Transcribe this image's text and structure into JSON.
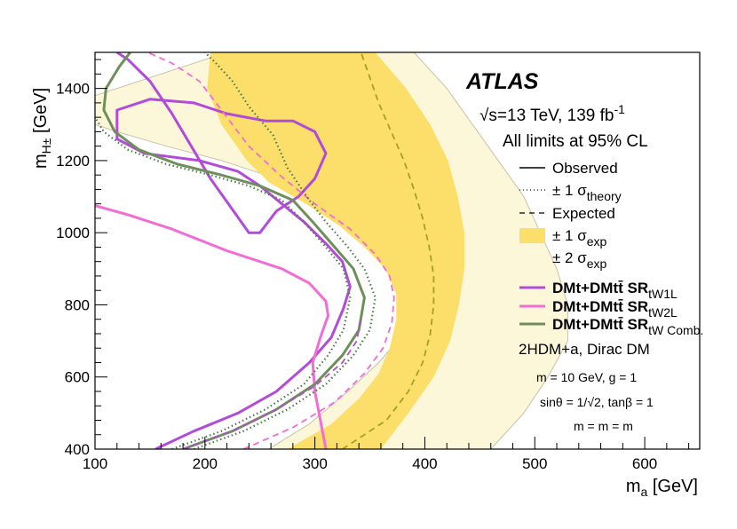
{
  "chart_data": {
    "type": "line",
    "title": "ATLAS",
    "xlabel": "m_a [GeV]",
    "ylabel": "m_H± [GeV]",
    "xlim": [
      100,
      650
    ],
    "ylim": [
      400,
      1500
    ],
    "xticks": [
      100,
      200,
      300,
      400,
      500,
      600
    ],
    "yticks": [
      400,
      600,
      800,
      1000,
      1200,
      1400
    ],
    "band_2sigma": [
      [
        330,
        1500
      ],
      [
        390,
        1500
      ],
      [
        420,
        1400
      ],
      [
        455,
        1250
      ],
      [
        490,
        1100
      ],
      [
        505,
        1000
      ],
      [
        520,
        900
      ],
      [
        530,
        800
      ],
      [
        530,
        700
      ],
      [
        512,
        600
      ],
      [
        490,
        500
      ],
      [
        460,
        400
      ],
      [
        258,
        400
      ],
      [
        295,
        470
      ],
      [
        330,
        560
      ],
      [
        358,
        640
      ],
      [
        375,
        700
      ],
      [
        385,
        780
      ],
      [
        385,
        840
      ],
      [
        372,
        920
      ],
      [
        350,
        1000
      ],
      [
        310,
        1080
      ],
      [
        265,
        1150
      ],
      [
        215,
        1200
      ],
      [
        165,
        1240
      ],
      [
        120,
        1280
      ],
      [
        100,
        1300
      ],
      [
        100,
        1380
      ],
      [
        130,
        1410
      ],
      [
        170,
        1450
      ],
      [
        220,
        1500
      ]
    ],
    "band_1sigma": [
      [
        254,
        1500
      ],
      [
        355,
        1500
      ],
      [
        383,
        1400
      ],
      [
        405,
        1300
      ],
      [
        421,
        1200
      ],
      [
        430,
        1100
      ],
      [
        436,
        1000
      ],
      [
        436,
        900
      ],
      [
        431,
        800
      ],
      [
        423,
        700
      ],
      [
        408,
        600
      ],
      [
        385,
        500
      ],
      [
        360,
        400
      ],
      [
        275,
        400
      ],
      [
        315,
        470
      ],
      [
        340,
        540
      ],
      [
        358,
        610
      ],
      [
        368,
        680
      ],
      [
        374,
        760
      ],
      [
        374,
        830
      ],
      [
        364,
        900
      ],
      [
        345,
        960
      ],
      [
        322,
        1020
      ],
      [
        292,
        1080
      ],
      [
        258,
        1140
      ],
      [
        238,
        1200
      ],
      [
        215,
        1300
      ],
      [
        202,
        1400
      ],
      [
        205,
        1500
      ]
    ],
    "series": [
      {
        "name": "DMt+DMtt SR_tW1L observed",
        "color": "#b24bd8",
        "style": "solid",
        "points": [
          [
            155,
            400
          ],
          [
            190,
            450
          ],
          [
            230,
            500
          ],
          [
            265,
            560
          ],
          [
            295,
            640
          ],
          [
            315,
            710
          ],
          [
            326,
            790
          ],
          [
            332,
            850
          ],
          [
            325,
            920
          ],
          [
            310,
            970
          ],
          [
            290,
            1030
          ],
          [
            270,
            1080
          ],
          [
            250,
            1130
          ],
          [
            230,
            1170
          ],
          [
            195,
            1200
          ],
          [
            145,
            1220
          ],
          [
            120,
            1260
          ],
          [
            120,
            1340
          ],
          [
            150,
            1370
          ],
          [
            190,
            1360
          ],
          [
            220,
            1330
          ],
          [
            255,
            1310
          ],
          [
            280,
            1310
          ],
          [
            300,
            1280
          ],
          [
            310,
            1220
          ],
          [
            300,
            1150
          ],
          [
            285,
            1100
          ],
          [
            265,
            1060
          ],
          [
            250,
            1000
          ],
          [
            240,
            1000
          ],
          [
            205,
            1150
          ],
          [
            170,
            1330
          ],
          [
            150,
            1420
          ],
          [
            130,
            1480
          ],
          [
            120,
            1500
          ]
        ]
      },
      {
        "name": "DMt+DMtt SR_tW2L observed",
        "color": "#f26cd4",
        "style": "solid",
        "points": [
          [
            100,
            1075
          ],
          [
            130,
            1050
          ],
          [
            170,
            1010
          ],
          [
            220,
            950
          ],
          [
            270,
            900
          ],
          [
            295,
            860
          ],
          [
            310,
            810
          ],
          [
            312,
            770
          ],
          [
            305,
            710
          ],
          [
            298,
            640
          ],
          [
            300,
            560
          ],
          [
            305,
            480
          ],
          [
            310,
            400
          ]
        ]
      },
      {
        "name": "DMt+DMtt SR_tW Comb. observed",
        "color": "#6f8f5a",
        "style": "solid",
        "points": [
          [
            180,
            400
          ],
          [
            225,
            450
          ],
          [
            265,
            510
          ],
          [
            300,
            580
          ],
          [
            325,
            660
          ],
          [
            340,
            730
          ],
          [
            345,
            820
          ],
          [
            335,
            900
          ],
          [
            318,
            960
          ],
          [
            298,
            1030
          ],
          [
            280,
            1090
          ],
          [
            250,
            1130
          ],
          [
            215,
            1160
          ],
          [
            175,
            1190
          ],
          [
            140,
            1230
          ],
          [
            118,
            1280
          ],
          [
            108,
            1340
          ],
          [
            110,
            1400
          ],
          [
            122,
            1460
          ],
          [
            132,
            1500
          ]
        ]
      },
      {
        "name": "DMt+DMtt SR_tW1L expected",
        "color": "#b24bd8",
        "style": "dashed",
        "points": [
          [
            180,
            400
          ],
          [
            225,
            450
          ],
          [
            265,
            510
          ],
          [
            300,
            575
          ],
          [
            325,
            640
          ],
          [
            338,
            700
          ],
          [
            342,
            760
          ]
        ]
      },
      {
        "name": "DMt+DMtt SR_tW2L expected",
        "color": "#f26cd4",
        "style": "dashed",
        "points": [
          [
            235,
            400
          ],
          [
            280,
            460
          ],
          [
            318,
            530
          ],
          [
            345,
            610
          ],
          [
            362,
            680
          ],
          [
            370,
            750
          ],
          [
            372,
            820
          ],
          [
            368,
            880
          ],
          [
            355,
            940
          ],
          [
            332,
            1010
          ],
          [
            300,
            1080
          ],
          [
            268,
            1160
          ],
          [
            240,
            1240
          ],
          [
            215,
            1340
          ],
          [
            195,
            1420
          ],
          [
            170,
            1470
          ],
          [
            148,
            1500
          ]
        ]
      },
      {
        "name": "DMt+DMtt SR_tW Comb. expected",
        "color": "#a4a028",
        "style": "dashed",
        "points": [
          [
            325,
            400
          ],
          [
            365,
            480
          ],
          [
            385,
            560
          ],
          [
            398,
            640
          ],
          [
            405,
            720
          ],
          [
            408,
            800
          ],
          [
            408,
            880
          ],
          [
            404,
            960
          ],
          [
            398,
            1040
          ],
          [
            390,
            1120
          ],
          [
            381,
            1200
          ],
          [
            368,
            1290
          ],
          [
            358,
            1360
          ],
          [
            350,
            1430
          ],
          [
            342,
            1500
          ]
        ]
      },
      {
        "name": "theory ±1σ upper",
        "color": "#4d7a4d",
        "style": "dotted",
        "points": [
          [
            190,
            400
          ],
          [
            235,
            450
          ],
          [
            275,
            510
          ],
          [
            310,
            580
          ],
          [
            335,
            660
          ],
          [
            350,
            730
          ],
          [
            355,
            820
          ],
          [
            345,
            900
          ],
          [
            330,
            960
          ],
          [
            310,
            1030
          ],
          [
            295,
            1090
          ],
          [
            275,
            1180
          ],
          [
            262,
            1270
          ],
          [
            240,
            1350
          ],
          [
            225,
            1420
          ],
          [
            210,
            1470
          ],
          [
            200,
            1500
          ]
        ]
      },
      {
        "name": "theory ±1σ lower",
        "color": "#4d7a4d",
        "style": "dotted",
        "points": [
          [
            170,
            400
          ],
          [
            215,
            450
          ],
          [
            255,
            510
          ],
          [
            290,
            580
          ],
          [
            312,
            660
          ],
          [
            326,
            730
          ],
          [
            332,
            820
          ],
          [
            326,
            900
          ],
          [
            310,
            960
          ],
          [
            290,
            1030
          ],
          [
            270,
            1090
          ],
          [
            240,
            1130
          ],
          [
            205,
            1160
          ],
          [
            165,
            1190
          ],
          [
            130,
            1230
          ],
          [
            108,
            1280
          ],
          [
            100,
            1320
          ]
        ]
      }
    ]
  },
  "labels": {
    "atlas": "ATLAS",
    "energy": "√s=13 TeV, 139 fb",
    "energy_sup": "-1",
    "cl": "All limits at 95% CL",
    "model": "2HDM+a, Dirac DM",
    "param1": "m = 10 GeV, g = 1",
    "param2": "sinθ = 1/√2, tanβ = 1",
    "param3": "m = m = m"
  },
  "legend": {
    "observed": "Observed",
    "theory": "± 1 σ",
    "theory_sub": "theory",
    "expected": "Expected",
    "exp1": "± 1 σ",
    "exp1_sub": "exp",
    "exp2": "± 2 σ",
    "exp2_sub": "exp",
    "sr1": "DMt+DMtt̄ SR",
    "sr1_sub": "tW1L",
    "sr2": "DMt+DMtt̄ SR",
    "sr2_sub": "tW2L",
    "sr3": "DMt+DMtt̄ SR",
    "sr3_sub": "tW Comb."
  },
  "axes": {
    "xlabel": "m",
    "xlabel_sub": "a",
    "xlabel_unit": " [GeV]",
    "ylabel": "m",
    "ylabel_sub": "H±",
    "ylabel_unit": " [GeV]"
  },
  "colors": {
    "band1": "#fbdf6a",
    "band2": "#fdf7d9",
    "band2_edge": "#c8c2a8"
  }
}
